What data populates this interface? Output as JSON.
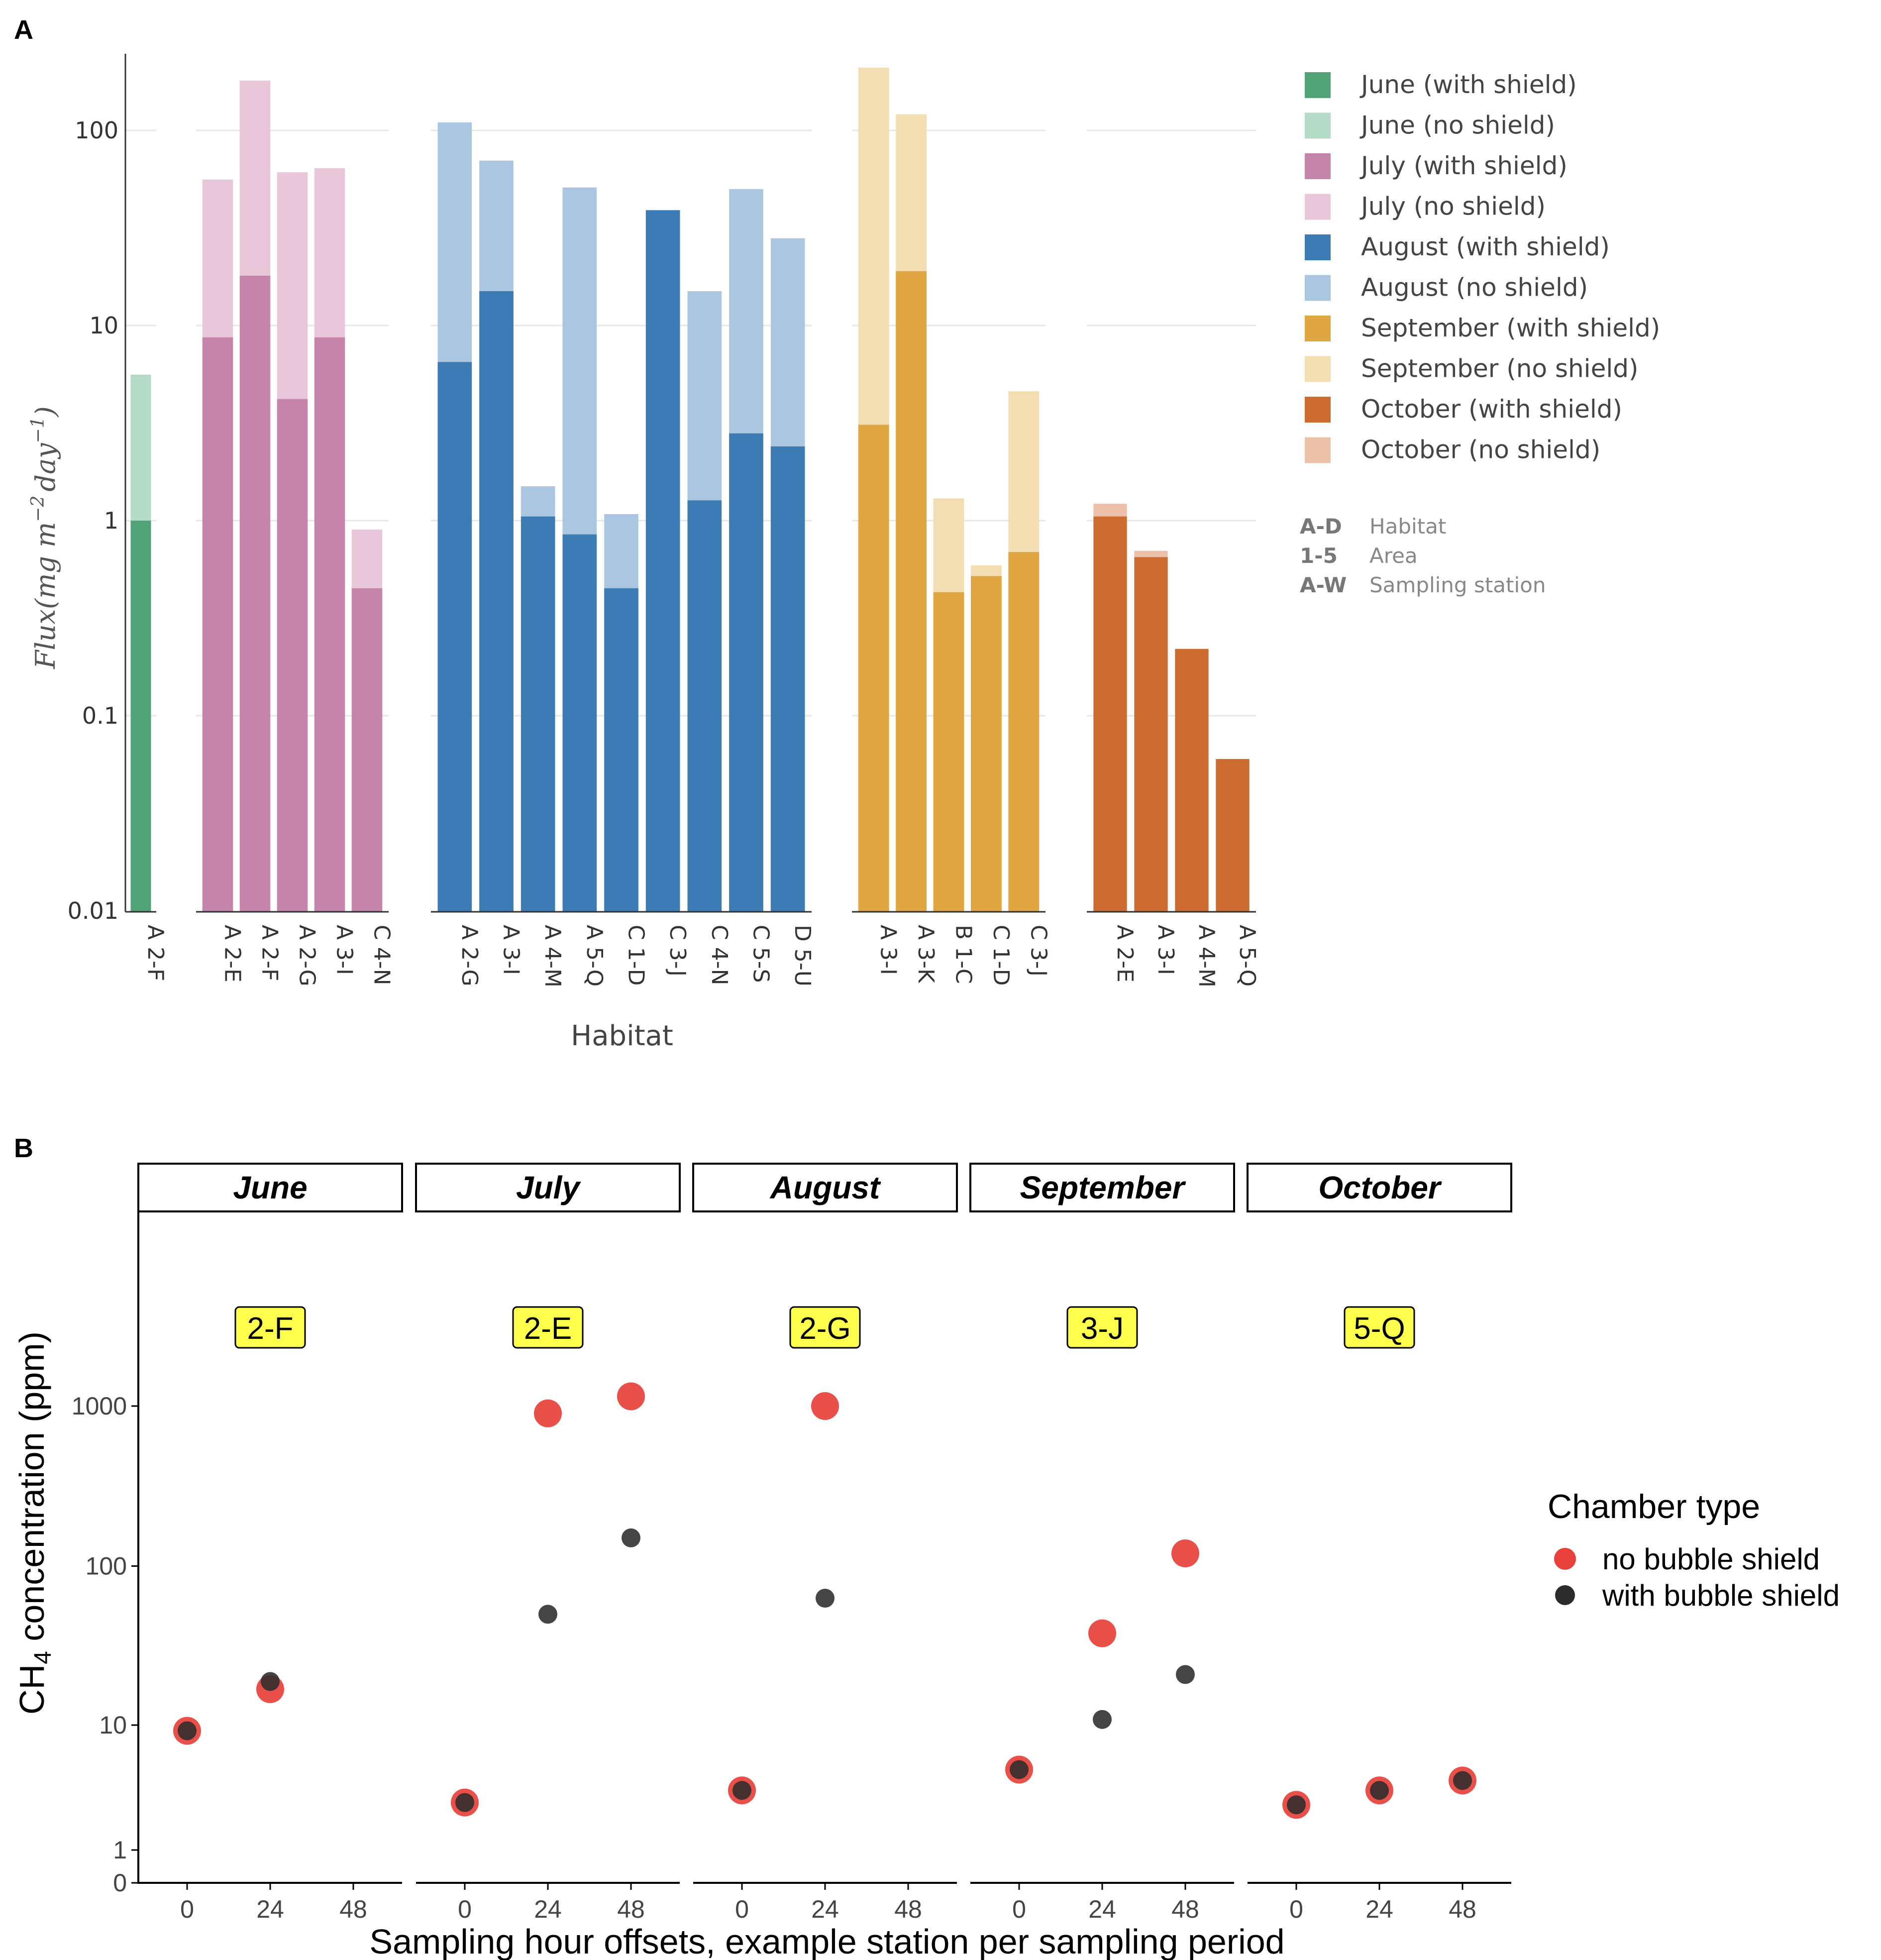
{
  "panel_a": {
    "label": "A"
  },
  "panel_b": {
    "label": "B"
  },
  "chart_data": [
    {
      "type": "bar",
      "panel": "A",
      "xlabel": "Habitat",
      "ylabel_tex": "Flux(mg m",
      "ylabel_sup1": "−2",
      "ylabel_mid": "day",
      "ylabel_sup2": "−1",
      "ylabel_end": ")",
      "yscale": "log",
      "ylim": [
        0.01,
        250
      ],
      "yticks": [
        "0.01",
        "0.1",
        "1",
        "10",
        "100"
      ],
      "yticks_values": [
        0.01,
        0.1,
        1,
        10,
        100
      ],
      "groups": [
        {
          "month": "June",
          "color_with": "#52a478",
          "color_no": "#b3dbc8",
          "bars": [
            {
              "habitat": "A",
              "station": "2-F",
              "no_shield": 5.6,
              "with_shield": 1.0
            }
          ]
        },
        {
          "month": "July",
          "color_with": "#c584aa",
          "color_no": "#e8c8d8",
          "bars": [
            {
              "habitat": "A",
              "station": "2-E",
              "no_shield": 56,
              "with_shield": 8.7
            },
            {
              "habitat": "A",
              "station": "2-F",
              "no_shield": 180,
              "with_shield": 18
            },
            {
              "habitat": "A",
              "station": "2-G",
              "no_shield": 61,
              "with_shield": 4.2
            },
            {
              "habitat": "A",
              "station": "3-I",
              "no_shield": 64,
              "with_shield": 8.7
            },
            {
              "habitat": "C",
              "station": "4-N",
              "no_shield": 0.9,
              "with_shield": 0.45
            }
          ]
        },
        {
          "month": "August",
          "color_with": "#3c7bb3",
          "color_no": "#aac6e0",
          "bars": [
            {
              "habitat": "A",
              "station": "2-G",
              "no_shield": 110,
              "with_shield": 6.5
            },
            {
              "habitat": "A",
              "station": "3-I",
              "no_shield": 70,
              "with_shield": 15
            },
            {
              "habitat": "A",
              "station": "4-M",
              "no_shield": 1.5,
              "with_shield": 1.05
            },
            {
              "habitat": "A",
              "station": "5-Q",
              "no_shield": 51,
              "with_shield": 0.85
            },
            {
              "habitat": "C",
              "station": "1-D",
              "no_shield": 1.08,
              "with_shield": 0.45
            },
            {
              "habitat": "C",
              "station": "3-J",
              "no_shield": 39,
              "with_shield": 39
            },
            {
              "habitat": "C",
              "station": "4-N",
              "no_shield": 15,
              "with_shield": 1.27
            },
            {
              "habitat": "C",
              "station": "5-S",
              "no_shield": 50,
              "with_shield": 2.8
            },
            {
              "habitat": "D",
              "station": "5-U",
              "no_shield": 28,
              "with_shield": 2.4
            }
          ]
        },
        {
          "month": "September",
          "color_with": "#e0a642",
          "color_no": "#f3ddb3",
          "bars": [
            {
              "habitat": "A",
              "station": "3-I",
              "no_shield": 210,
              "with_shield": 3.1
            },
            {
              "habitat": "A",
              "station": "3-K",
              "no_shield": 121,
              "with_shield": 19
            },
            {
              "habitat": "B",
              "station": "1-C",
              "no_shield": 1.3,
              "with_shield": 0.43
            },
            {
              "habitat": "C",
              "station": "1-D",
              "no_shield": 0.59,
              "with_shield": 0.52
            },
            {
              "habitat": "C",
              "station": "3-J",
              "no_shield": 4.6,
              "with_shield": 0.69
            }
          ]
        },
        {
          "month": "October",
          "color_with": "#cd6c31",
          "color_no": "#edc1a9",
          "bars": [
            {
              "habitat": "A",
              "station": "2-E",
              "no_shield": 1.22,
              "with_shield": 1.05
            },
            {
              "habitat": "A",
              "station": "3-I",
              "no_shield": 0.7,
              "with_shield": 0.65
            },
            {
              "habitat": "A",
              "station": "4-M",
              "no_shield": 0.22,
              "with_shield": 0.22
            },
            {
              "habitat": "A",
              "station": "5-Q",
              "no_shield": 0.06,
              "with_shield": 0.06
            }
          ]
        }
      ],
      "legend": [
        {
          "label": "June (with shield)",
          "color": "#52a478"
        },
        {
          "label": "June (no shield)",
          "color": "#b3dbc8"
        },
        {
          "label": "July (with shield)",
          "color": "#c584aa"
        },
        {
          "label": "July (no shield)",
          "color": "#e8c8d8"
        },
        {
          "label": "August (with shield)",
          "color": "#3c7bb3"
        },
        {
          "label": "August (no shield)",
          "color": "#aac6e0"
        },
        {
          "label": "September (with shield)",
          "color": "#e0a642"
        },
        {
          "label": "September (no shield)",
          "color": "#f3ddb3"
        },
        {
          "label": "October (with shield)",
          "color": "#cd6c31"
        },
        {
          "label": "October (no shield)",
          "color": "#edc1a9"
        }
      ],
      "key": [
        {
          "code": "A-D",
          "desc": "Habitat"
        },
        {
          "code": "1-5",
          "desc": "Area"
        },
        {
          "code": "A-W",
          "desc": "Sampling station"
        }
      ]
    },
    {
      "type": "scatter",
      "panel": "B",
      "xlabel": "Sampling hour offsets, example station per sampling period",
      "ylabel_pre": "CH",
      "ylabel_sub": "4",
      "ylabel_post": " concentration (ppm)",
      "yscale": "log",
      "yticks": [
        "0",
        "1",
        "10",
        "100",
        "1000"
      ],
      "yticks_values": [
        0,
        1,
        10,
        100,
        1000
      ],
      "xticks": [
        "0",
        "24",
        "48"
      ],
      "xticks_values": [
        0,
        24,
        48
      ],
      "facets": [
        {
          "month": "June",
          "station": "2-F",
          "no_bubble_shield": [
            {
              "x": 0,
              "y": 9
            },
            {
              "x": 24,
              "y": 17
            }
          ],
          "with_bubble_shield": [
            {
              "x": 0,
              "y": 9
            },
            {
              "x": 24,
              "y": 19
            }
          ]
        },
        {
          "month": "July",
          "station": "2-E",
          "no_bubble_shield": [
            {
              "x": 0,
              "y": 2.4
            },
            {
              "x": 24,
              "y": 900
            },
            {
              "x": 48,
              "y": 1150
            }
          ],
          "with_bubble_shield": [
            {
              "x": 0,
              "y": 2.4
            },
            {
              "x": 24,
              "y": 50
            },
            {
              "x": 48,
              "y": 150
            }
          ]
        },
        {
          "month": "August",
          "station": "2-G",
          "no_bubble_shield": [
            {
              "x": 0,
              "y": 3.0
            },
            {
              "x": 24,
              "y": 1000
            }
          ],
          "with_bubble_shield": [
            {
              "x": 0,
              "y": 3.0
            },
            {
              "x": 24,
              "y": 63
            }
          ]
        },
        {
          "month": "September",
          "station": "3-J",
          "no_bubble_shield": [
            {
              "x": 0,
              "y": 4.4
            },
            {
              "x": 24,
              "y": 38
            },
            {
              "x": 48,
              "y": 120
            }
          ],
          "with_bubble_shield": [
            {
              "x": 0,
              "y": 4.4
            },
            {
              "x": 24,
              "y": 11
            },
            {
              "x": 48,
              "y": 21
            }
          ]
        },
        {
          "month": "October",
          "station": "5-Q",
          "no_bubble_shield": [
            {
              "x": 0,
              "y": 2.3
            },
            {
              "x": 24,
              "y": 3.0
            },
            {
              "x": 48,
              "y": 3.6
            }
          ],
          "with_bubble_shield": [
            {
              "x": 0,
              "y": 2.3
            },
            {
              "x": 24,
              "y": 3.0
            },
            {
              "x": 48,
              "y": 3.6
            }
          ]
        }
      ],
      "legend_title": "Chamber type",
      "legend": [
        {
          "label": "no bubble shield",
          "color": "#e8413b"
        },
        {
          "label": "with bubble shield",
          "color": "#2b2b2b"
        }
      ],
      "station_label_bg": "#ffff4d"
    }
  ]
}
